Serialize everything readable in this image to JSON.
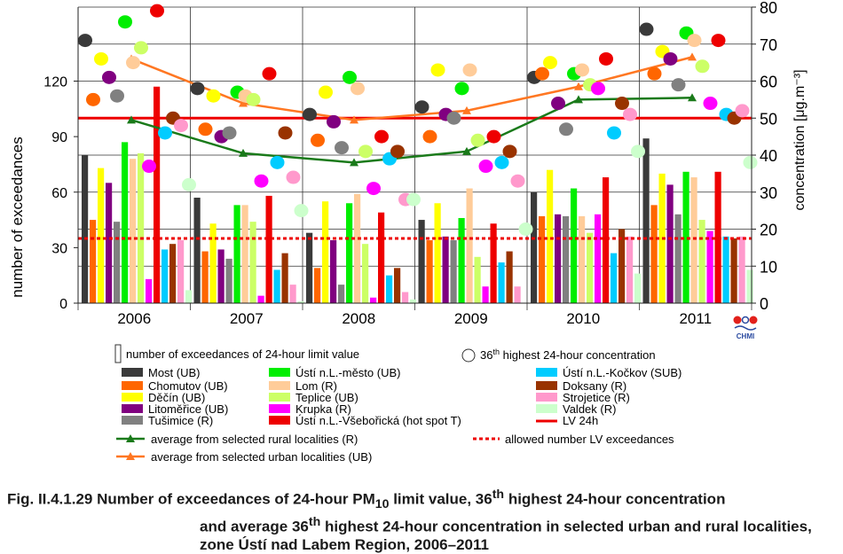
{
  "chart_data": {
    "type": "bar",
    "categories": [
      "2006",
      "2007",
      "2008",
      "2009",
      "2010",
      "2011"
    ],
    "left_axis": {
      "label": "number of exceedances",
      "ticks": [
        "0",
        "30",
        "60",
        "90",
        "120"
      ],
      "range": [
        0,
        160
      ]
    },
    "right_axis": {
      "label": "concentration [μg.m⁻³]",
      "ticks": [
        "0",
        "10",
        "20",
        "30",
        "40",
        "50",
        "60",
        "70",
        "80"
      ],
      "range": [
        0,
        80
      ]
    },
    "series": [
      {
        "name": "Most (UB)",
        "color": "#3a3a3a",
        "exceedances": [
          80,
          57,
          38,
          45,
          60,
          89
        ],
        "concentration_36th": [
          71,
          58,
          51,
          53,
          61,
          74
        ]
      },
      {
        "name": "Chomutov (UB)",
        "color": "#ff6600",
        "exceedances": [
          45,
          28,
          19,
          34,
          47,
          53
        ],
        "concentration_36th": [
          55,
          47,
          44,
          45,
          62,
          62
        ]
      },
      {
        "name": "Děčín (UB)",
        "color": "#ffff00",
        "exceedances": [
          73,
          43,
          55,
          54,
          72,
          70
        ],
        "concentration_36th": [
          66,
          56,
          57,
          63,
          65,
          68
        ]
      },
      {
        "name": "Litoměřice (UB)",
        "color": "#800080",
        "exceedances": [
          65,
          29,
          34,
          36,
          48,
          64
        ],
        "concentration_36th": [
          61,
          45,
          49,
          51,
          54,
          66
        ]
      },
      {
        "name": "Tušimice (R)",
        "color": "#808080",
        "exceedances": [
          44,
          24,
          10,
          34,
          47,
          48
        ],
        "concentration_36th": [
          56,
          46,
          42,
          50,
          47,
          59
        ]
      },
      {
        "name": "Ústí n.L.-město (UB)",
        "color": "#00ee00",
        "exceedances": [
          87,
          53,
          54,
          46,
          62,
          71
        ],
        "concentration_36th": [
          76,
          57,
          61,
          58,
          62,
          73
        ]
      },
      {
        "name": "Lom (R)",
        "color": "#ffcc99",
        "exceedances": [
          78,
          53,
          59,
          62,
          47,
          68
        ],
        "concentration_36th": [
          65,
          56,
          58,
          63,
          63,
          71
        ]
      },
      {
        "name": "Teplice (UB)",
        "color": "#ccff66",
        "exceedances": [
          81,
          44,
          32,
          25,
          38,
          45
        ],
        "concentration_36th": [
          69,
          55,
          41,
          44,
          59,
          64
        ]
      },
      {
        "name": "Krupka (R)",
        "color": "#ff00ff",
        "exceedances": [
          13,
          4,
          3,
          9,
          48,
          39
        ],
        "concentration_36th": [
          37,
          33,
          31,
          37,
          58,
          54
        ]
      },
      {
        "name": "Ústí n.L.-Všebořická (hot spot T)",
        "color": "#ee0000",
        "exceedances": [
          117,
          58,
          49,
          43,
          68,
          71
        ],
        "concentration_36th": [
          79,
          62,
          45,
          45,
          66,
          71
        ]
      },
      {
        "name": "Ústí n.L.-Kočkov (SUB)",
        "color": "#00ccff",
        "exceedances": [
          29,
          18,
          15,
          22,
          27,
          36
        ],
        "concentration_36th": [
          46,
          38,
          39,
          38,
          46,
          51
        ]
      },
      {
        "name": "Doksany (R)",
        "color": "#993300",
        "exceedances": [
          32,
          27,
          19,
          28,
          40,
          35
        ],
        "concentration_36th": [
          50,
          46,
          41,
          41,
          54,
          50
        ]
      },
      {
        "name": "Strojetice (R)",
        "color": "#ff99cc",
        "exceedances": [
          34,
          10,
          6,
          9,
          36,
          36
        ],
        "concentration_36th": [
          48,
          34,
          28,
          33,
          51,
          52
        ]
      },
      {
        "name": "Valdek (R)",
        "color": "#ccffcc",
        "exceedances": [
          7,
          1,
          2,
          0,
          16,
          18
        ],
        "concentration_36th": [
          32,
          25,
          28,
          20,
          41,
          38
        ]
      }
    ],
    "line_series": [
      {
        "name": "average from selected rural localities (R)",
        "color": "#1a7a1a",
        "values": [
          49.5,
          40.5,
          38,
          41,
          55,
          55.5
        ]
      },
      {
        "name": "average from selected urban localities  (UB)",
        "color": "#ff7722",
        "values": [
          66,
          54,
          49.5,
          52,
          58.5,
          66.5
        ]
      }
    ],
    "reference_lines": [
      {
        "name": "LV 24h",
        "color": "#ee0000",
        "value": 50,
        "axis": "right"
      },
      {
        "name": "allowed number LV exceedances",
        "color": "#ee0000",
        "value": 35,
        "axis": "left"
      }
    ],
    "grid": true
  },
  "legend": {
    "bar_key_label": "number of exceedances of 24-hour limit value",
    "circle_key_label_main": "36",
    "circle_key_label_sup": "th",
    "circle_key_label_rest": " highest 24-hour concentration",
    "lv_label": "LV 24h"
  },
  "logo": {
    "text": "CHMI"
  },
  "caption": {
    "prefix": "Fig. II.4.1.29  Number of exceedances of 24-hour PM",
    "sub": "10",
    "mid1": " limit value, 36",
    "sup1": "th",
    "mid2": " highest 24-hour concentration",
    "line2a": "and average 36",
    "line2sup": "th",
    "line2b": " highest 24-hour concentration in selected urban and rural localities,",
    "line3": "zone Ústí nad Labem Region, 2006–2011"
  }
}
